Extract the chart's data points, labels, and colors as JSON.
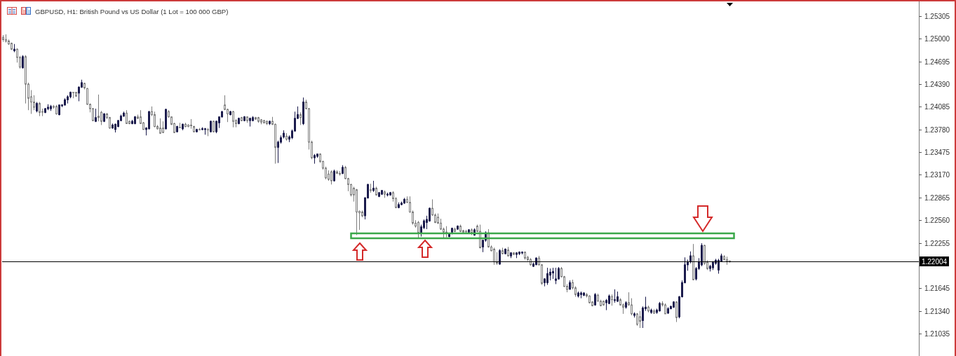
{
  "chart_data": {
    "type": "candlestick",
    "title": "GBPUSD, H1: British Pound vs US Dollar (1 Lot = 100 000 GBP)",
    "categories": [
      null,
      null,
      null,
      null,
      null,
      null,
      null,
      null,
      null,
      null,
      null,
      null,
      null,
      null,
      null,
      null,
      null,
      null,
      null,
      null,
      null,
      null,
      null,
      null,
      null,
      null,
      null,
      null,
      null,
      null,
      null,
      null,
      null,
      null,
      null,
      null,
      null,
      null,
      null,
      null,
      null,
      null,
      null,
      null,
      null,
      null,
      null,
      null,
      null,
      null,
      null,
      null,
      null,
      null,
      null,
      null,
      null,
      null,
      null,
      null,
      null,
      null,
      null,
      null,
      null,
      null,
      null,
      null,
      null,
      null,
      null,
      null,
      null,
      null,
      null,
      null,
      null,
      null,
      null,
      null,
      null,
      null,
      null,
      null,
      null,
      null,
      null,
      null,
      null,
      null,
      null,
      null,
      null,
      null,
      null,
      null,
      null,
      null,
      null,
      null,
      null,
      null,
      null,
      null,
      null,
      null,
      null,
      null,
      null,
      null,
      null,
      null,
      null,
      null,
      null,
      null,
      null,
      null,
      null,
      null,
      null,
      null,
      null,
      null,
      null,
      null,
      null,
      null,
      null,
      null,
      null,
      null,
      null,
      null,
      null,
      null,
      null,
      null,
      null,
      null,
      null,
      null,
      null,
      null,
      null,
      null,
      null,
      null,
      null,
      null,
      null,
      null,
      null,
      null,
      null,
      null,
      null,
      null,
      null,
      null,
      null,
      null,
      null,
      null,
      null,
      null,
      null,
      null,
      null,
      null,
      null,
      null,
      null,
      null,
      null,
      null,
      null,
      null,
      null,
      null,
      null,
      null,
      null,
      null,
      null,
      null,
      null,
      null,
      null,
      null,
      null,
      null,
      null,
      null,
      null,
      null,
      null,
      null,
      null,
      null,
      null,
      null,
      null,
      null,
      null,
      null,
      null,
      null,
      null,
      null,
      null,
      null,
      null,
      null,
      null,
      null,
      null,
      null,
      null,
      null,
      null,
      null,
      null,
      null,
      null,
      null,
      null,
      null,
      null,
      null,
      null,
      null,
      null,
      null,
      null,
      null,
      null,
      null,
      null,
      null,
      null,
      null,
      null,
      null,
      null,
      null,
      null,
      null,
      null,
      null,
      null,
      null,
      null,
      null,
      null,
      null,
      null,
      null,
      null,
      null,
      null,
      null,
      null,
      null,
      null,
      null,
      null,
      null,
      null,
      null,
      null,
      null,
      null,
      null,
      null,
      null,
      null,
      null,
      null,
      null,
      null,
      null,
      null,
      null,
      null,
      null,
      null,
      null,
      null,
      null,
      null,
      null,
      null,
      null,
      null,
      null,
      null,
      null,
      null,
      null,
      null,
      null,
      null,
      null,
      null,
      null,
      null,
      null,
      null,
      null,
      null,
      null,
      null,
      null,
      null,
      null,
      null,
      null,
      null,
      null,
      null,
      null,
      null,
      null,
      null,
      null,
      null
    ],
    "ohlc": [
      [
        1.2502,
        1.2505,
        1.2496,
        1.2499
      ],
      [
        1.2499,
        1.2506,
        1.2495,
        1.2497
      ],
      [
        1.2497,
        1.2499,
        1.2492,
        1.2493
      ],
      [
        1.2494,
        1.2495,
        1.2485,
        1.2486
      ],
      [
        1.2484,
        1.2493,
        1.2482,
        1.2486
      ],
      [
        1.2486,
        1.2487,
        1.2468,
        1.2475
      ],
      [
        1.2475,
        1.2477,
        1.246,
        1.2462
      ],
      [
        1.2461,
        1.2478,
        1.246,
        1.2476
      ],
      [
        1.2476,
        1.2478,
        1.2413,
        1.2439
      ],
      [
        1.2439,
        1.2441,
        1.2404,
        1.242
      ],
      [
        1.2422,
        1.2431,
        1.2399,
        1.2415
      ],
      [
        1.2415,
        1.2424,
        1.2404,
        1.2408
      ],
      [
        1.2403,
        1.2415,
        1.2401,
        1.2413
      ],
      [
        1.2413,
        1.2415,
        1.2396,
        1.2401
      ],
      [
        1.2402,
        1.2406,
        1.2396,
        1.2402
      ],
      [
        1.2401,
        1.2407,
        1.24,
        1.2406
      ],
      [
        1.2406,
        1.2412,
        1.2404,
        1.2408
      ],
      [
        1.2406,
        1.2411,
        1.2403,
        1.2409
      ],
      [
        1.2409,
        1.2411,
        1.2406,
        1.2408
      ],
      [
        1.2409,
        1.2411,
        1.2398,
        1.2399
      ],
      [
        1.2398,
        1.2411,
        1.2397,
        1.2411
      ],
      [
        1.241,
        1.2412,
        1.2408,
        1.2411
      ],
      [
        1.2411,
        1.242,
        1.241,
        1.2418
      ],
      [
        1.2418,
        1.2424,
        1.2413,
        1.2422
      ],
      [
        1.2422,
        1.2429,
        1.242,
        1.2428
      ],
      [
        1.2428,
        1.2428,
        1.242,
        1.2428
      ],
      [
        1.2428,
        1.2428,
        1.2422,
        1.2423
      ],
      [
        1.2427,
        1.2436,
        1.2416,
        1.2435
      ],
      [
        1.2435,
        1.2445,
        1.2434,
        1.2441
      ],
      [
        1.244,
        1.2441,
        1.2432,
        1.2434
      ],
      [
        1.2433,
        1.2434,
        1.2411,
        1.2412
      ],
      [
        1.2412,
        1.2413,
        1.2401,
        1.2406
      ],
      [
        1.2406,
        1.2407,
        1.2389,
        1.239
      ],
      [
        1.2389,
        1.2406,
        1.2388,
        1.2394
      ],
      [
        1.2396,
        1.2425,
        1.2389,
        1.2394
      ],
      [
        1.2401,
        1.2403,
        1.2384,
        1.2389
      ],
      [
        1.2389,
        1.24,
        1.2388,
        1.2399
      ],
      [
        1.2399,
        1.24,
        1.2392,
        1.2394
      ],
      [
        1.2394,
        1.2395,
        1.2379,
        1.238
      ],
      [
        1.238,
        1.2386,
        1.2379,
        1.2384
      ],
      [
        1.2378,
        1.2386,
        1.2374,
        1.2385
      ],
      [
        1.2382,
        1.2391,
        1.2381,
        1.239
      ],
      [
        1.239,
        1.2398,
        1.2389,
        1.2396
      ],
      [
        1.2396,
        1.2402,
        1.2395,
        1.24
      ],
      [
        1.24,
        1.2404,
        1.2386,
        1.2386
      ],
      [
        1.2389,
        1.239,
        1.2385,
        1.2386
      ],
      [
        1.2386,
        1.2391,
        1.2385,
        1.2389
      ],
      [
        1.2386,
        1.2396,
        1.2385,
        1.2395
      ],
      [
        1.2395,
        1.2398,
        1.2392,
        1.2393
      ],
      [
        1.2395,
        1.2404,
        1.2386,
        1.2386
      ],
      [
        1.2387,
        1.2388,
        1.2378,
        1.2378
      ],
      [
        1.2378,
        1.2381,
        1.237,
        1.238
      ],
      [
        1.2379,
        1.2403,
        1.2378,
        1.2402
      ],
      [
        1.2402,
        1.2409,
        1.2396,
        1.2398
      ],
      [
        1.2398,
        1.2402,
        1.2381,
        1.2382
      ],
      [
        1.2382,
        1.2384,
        1.2378,
        1.2379
      ],
      [
        1.238,
        1.2393,
        1.2372,
        1.2373
      ],
      [
        1.238,
        1.2389,
        1.2373,
        1.2374
      ],
      [
        1.2379,
        1.2406,
        1.2378,
        1.2405
      ],
      [
        1.2402,
        1.2404,
        1.2394,
        1.2395
      ],
      [
        1.2395,
        1.2395,
        1.2384,
        1.2385
      ],
      [
        1.2386,
        1.2387,
        1.2373,
        1.2374
      ],
      [
        1.2375,
        1.2383,
        1.2374,
        1.2382
      ],
      [
        1.2381,
        1.2387,
        1.238,
        1.2381
      ],
      [
        1.2379,
        1.2386,
        1.2377,
        1.2385
      ],
      [
        1.2385,
        1.2387,
        1.2381,
        1.2382
      ],
      [
        1.2384,
        1.2385,
        1.2381,
        1.2382
      ],
      [
        1.2384,
        1.2392,
        1.2379,
        1.2383
      ],
      [
        1.2382,
        1.2383,
        1.2374,
        1.2375
      ],
      [
        1.2375,
        1.2379,
        1.2374,
        1.2378
      ],
      [
        1.2378,
        1.238,
        1.2377,
        1.2378
      ],
      [
        1.2378,
        1.2381,
        1.2377,
        1.2379
      ],
      [
        1.2378,
        1.238,
        1.2371,
        1.2379
      ],
      [
        1.2378,
        1.238,
        1.2369,
        1.2378
      ],
      [
        1.2375,
        1.239,
        1.2374,
        1.2389
      ],
      [
        1.2389,
        1.239,
        1.2374,
        1.2375
      ],
      [
        1.2375,
        1.239,
        1.2373,
        1.2389
      ],
      [
        1.2387,
        1.2395,
        1.238,
        1.2395
      ],
      [
        1.2395,
        1.2403,
        1.2394,
        1.2402
      ],
      [
        1.2411,
        1.2424,
        1.2404,
        1.2405
      ],
      [
        1.2405,
        1.2406,
        1.2388,
        1.2399
      ],
      [
        1.2398,
        1.2403,
        1.2397,
        1.2402
      ],
      [
        1.2402,
        1.2403,
        1.2381,
        1.2389
      ],
      [
        1.239,
        1.2392,
        1.2381,
        1.2386
      ],
      [
        1.2386,
        1.2394,
        1.2385,
        1.2393
      ],
      [
        1.2394,
        1.2395,
        1.2389,
        1.239
      ],
      [
        1.239,
        1.2396,
        1.2389,
        1.2395
      ],
      [
        1.2395,
        1.2395,
        1.2387,
        1.239
      ],
      [
        1.239,
        1.2394,
        1.2382,
        1.2393
      ],
      [
        1.239,
        1.2396,
        1.2389,
        1.2394
      ],
      [
        1.2394,
        1.2395,
        1.2391,
        1.2392
      ],
      [
        1.2394,
        1.2395,
        1.2387,
        1.2389
      ],
      [
        1.2391,
        1.2392,
        1.2385,
        1.2388
      ],
      [
        1.239,
        1.2391,
        1.2386,
        1.2387
      ],
      [
        1.2389,
        1.239,
        1.2384,
        1.2386
      ],
      [
        1.2386,
        1.239,
        1.2384,
        1.2389
      ],
      [
        1.2389,
        1.2395,
        1.2384,
        1.2385
      ],
      [
        1.2385,
        1.2386,
        1.2332,
        1.2354
      ],
      [
        1.2354,
        1.2363,
        1.2333,
        1.2361
      ],
      [
        1.2361,
        1.237,
        1.2359,
        1.2367
      ],
      [
        1.2368,
        1.2377,
        1.2366,
        1.2373
      ],
      [
        1.2369,
        1.2373,
        1.2363,
        1.2365
      ],
      [
        1.2365,
        1.237,
        1.2361,
        1.2368
      ],
      [
        1.2367,
        1.2378,
        1.2365,
        1.2376
      ],
      [
        1.2376,
        1.2402,
        1.2375,
        1.2393
      ],
      [
        1.2393,
        1.2409,
        1.2392,
        1.2398
      ],
      [
        1.2398,
        1.2401,
        1.2384,
        1.2394
      ],
      [
        1.2386,
        1.2421,
        1.2384,
        1.2415
      ],
      [
        1.2415,
        1.2418,
        1.2405,
        1.2406
      ],
      [
        1.2406,
        1.2407,
        1.2351,
        1.2361
      ],
      [
        1.2361,
        1.2363,
        1.2338,
        1.234
      ],
      [
        1.234,
        1.2345,
        1.2332,
        1.2343
      ],
      [
        1.2342,
        1.2345,
        1.234,
        1.2345
      ],
      [
        1.2345,
        1.2346,
        1.2333,
        1.2335
      ],
      [
        1.2335,
        1.2336,
        1.2324,
        1.2326
      ],
      [
        1.2326,
        1.2328,
        1.2311,
        1.2313
      ],
      [
        1.2318,
        1.2323,
        1.2309,
        1.2311
      ],
      [
        1.2321,
        1.2323,
        1.2304,
        1.2309
      ],
      [
        1.2309,
        1.2324,
        1.2308,
        1.2322
      ],
      [
        1.2321,
        1.2323,
        1.2318,
        1.2319
      ],
      [
        1.2319,
        1.2322,
        1.2316,
        1.2318
      ],
      [
        1.2319,
        1.233,
        1.2318,
        1.2327
      ],
      [
        1.2327,
        1.2329,
        1.2311,
        1.2312
      ],
      [
        1.2312,
        1.2313,
        1.2295,
        1.2304
      ],
      [
        1.2304,
        1.2305,
        1.2288,
        1.229
      ],
      [
        1.2299,
        1.2301,
        1.2281,
        1.229
      ],
      [
        1.2297,
        1.2298,
        1.2236,
        1.2267
      ],
      [
        1.2268,
        1.2269,
        1.2243,
        1.2266
      ],
      [
        1.2267,
        1.2269,
        1.226,
        1.2262
      ],
      [
        1.2262,
        1.2287,
        1.2257,
        1.2286
      ],
      [
        1.2286,
        1.2305,
        1.2285,
        1.2304
      ],
      [
        1.2297,
        1.2305,
        1.2293,
        1.2296
      ],
      [
        1.2296,
        1.2309,
        1.2294,
        1.2299
      ],
      [
        1.2299,
        1.2301,
        1.2289,
        1.229
      ],
      [
        1.2288,
        1.2294,
        1.2287,
        1.2293
      ],
      [
        1.2291,
        1.2296,
        1.229,
        1.2296
      ],
      [
        1.2294,
        1.2296,
        1.2286,
        1.2291
      ],
      [
        1.229,
        1.2293,
        1.2288,
        1.2291
      ],
      [
        1.229,
        1.2294,
        1.2289,
        1.2293
      ],
      [
        1.2293,
        1.2295,
        1.2281,
        1.2285
      ],
      [
        1.2285,
        1.2287,
        1.2272,
        1.2273
      ],
      [
        1.2273,
        1.228,
        1.2272,
        1.2277
      ],
      [
        1.2277,
        1.2281,
        1.2276,
        1.2279
      ],
      [
        1.2279,
        1.2286,
        1.2278,
        1.2284
      ],
      [
        1.2284,
        1.2288,
        1.2279,
        1.228
      ],
      [
        1.228,
        1.2288,
        1.2266,
        1.2267
      ],
      [
        1.2267,
        1.2269,
        1.225,
        1.2252
      ],
      [
        1.2252,
        1.2256,
        1.2246,
        1.2248
      ],
      [
        1.2253,
        1.2255,
        1.2232,
        1.2239
      ],
      [
        1.2239,
        1.225,
        1.2234,
        1.2247
      ],
      [
        1.2246,
        1.2257,
        1.2244,
        1.2255
      ],
      [
        1.2253,
        1.2262,
        1.2244,
        1.2257
      ],
      [
        1.2255,
        1.2273,
        1.2254,
        1.2272
      ],
      [
        1.2272,
        1.2284,
        1.2262,
        1.2263
      ],
      [
        1.2263,
        1.2265,
        1.2252,
        1.2253
      ],
      [
        1.226,
        1.2265,
        1.2251,
        1.2252
      ],
      [
        1.2252,
        1.2258,
        1.2243,
        1.2244
      ],
      [
        1.2244,
        1.2246,
        1.2232,
        1.224
      ],
      [
        1.224,
        1.2248,
        1.2233,
        1.2239
      ],
      [
        1.2234,
        1.2238,
        1.2233,
        1.2237
      ],
      [
        1.224,
        1.2246,
        1.2237,
        1.2245
      ],
      [
        1.2244,
        1.2246,
        1.224,
        1.2241
      ],
      [
        1.2244,
        1.2249,
        1.2243,
        1.2248
      ],
      [
        1.2248,
        1.225,
        1.224,
        1.2241
      ],
      [
        1.2242,
        1.2243,
        1.2239,
        1.224
      ],
      [
        1.2241,
        1.2243,
        1.2239,
        1.2241
      ],
      [
        1.224,
        1.2244,
        1.2239,
        1.2243
      ],
      [
        1.2243,
        1.2245,
        1.2236,
        1.2239
      ],
      [
        1.2236,
        1.2245,
        1.2235,
        1.2243
      ],
      [
        1.2248,
        1.225,
        1.224,
        1.2241
      ],
      [
        1.2241,
        1.225,
        1.2218,
        1.2219
      ],
      [
        1.222,
        1.223,
        1.2213,
        1.2229
      ],
      [
        1.2229,
        1.2241,
        1.2227,
        1.2239
      ],
      [
        1.2239,
        1.2244,
        1.2219,
        1.222
      ],
      [
        1.222,
        1.2222,
        1.2214,
        1.2215
      ],
      [
        1.2217,
        1.2219,
        1.2196,
        1.22
      ],
      [
        1.22,
        1.2213,
        1.2196,
        1.2198
      ],
      [
        1.2197,
        1.2217,
        1.2196,
        1.2215
      ],
      [
        1.2215,
        1.2219,
        1.221,
        1.2211
      ],
      [
        1.2211,
        1.2218,
        1.221,
        1.2217
      ],
      [
        1.2216,
        1.222,
        1.2207,
        1.2208
      ],
      [
        1.2208,
        1.2213,
        1.2205,
        1.2212
      ],
      [
        1.2212,
        1.2213,
        1.2209,
        1.221
      ],
      [
        1.221,
        1.2213,
        1.2205,
        1.2212
      ],
      [
        1.2211,
        1.2214,
        1.2209,
        1.2213
      ],
      [
        1.2212,
        1.2214,
        1.221,
        1.2213
      ],
      [
        1.2213,
        1.2214,
        1.2203,
        1.2205
      ],
      [
        1.2206,
        1.2208,
        1.2201,
        1.2203
      ],
      [
        1.2203,
        1.2205,
        1.2195,
        1.2196
      ],
      [
        1.2194,
        1.2199,
        1.2193,
        1.2197
      ],
      [
        1.2196,
        1.2206,
        1.2196,
        1.2205
      ],
      [
        1.2205,
        1.2208,
        1.2195,
        1.2196
      ],
      [
        1.2196,
        1.2197,
        1.2169,
        1.2171
      ],
      [
        1.2172,
        1.2178,
        1.2167,
        1.2177
      ],
      [
        1.2172,
        1.2192,
        1.2169,
        1.2184
      ],
      [
        1.2182,
        1.2191,
        1.2175,
        1.2186
      ],
      [
        1.2185,
        1.2192,
        1.2177,
        1.2187
      ],
      [
        1.2175,
        1.2192,
        1.217,
        1.2177
      ],
      [
        1.2177,
        1.2193,
        1.2176,
        1.2191
      ],
      [
        1.2191,
        1.2193,
        1.2179,
        1.218
      ],
      [
        1.218,
        1.2181,
        1.2166,
        1.2167
      ],
      [
        1.2167,
        1.217,
        1.2159,
        1.2163
      ],
      [
        1.2163,
        1.2175,
        1.2163,
        1.2172
      ],
      [
        1.2172,
        1.2176,
        1.2163,
        1.2165
      ],
      [
        1.2165,
        1.2167,
        1.2153,
        1.2156
      ],
      [
        1.2154,
        1.216,
        1.2152,
        1.2158
      ],
      [
        1.2156,
        1.216,
        1.2151,
        1.2158
      ],
      [
        1.2155,
        1.2159,
        1.2154,
        1.2158
      ],
      [
        1.2156,
        1.2158,
        1.2152,
        1.2154
      ],
      [
        1.2154,
        1.2155,
        1.2144,
        1.2145
      ],
      [
        1.2146,
        1.2147,
        1.214,
        1.2141
      ],
      [
        1.2142,
        1.2158,
        1.2141,
        1.2156
      ],
      [
        1.2155,
        1.2157,
        1.2147,
        1.2147
      ],
      [
        1.2147,
        1.2149,
        1.214,
        1.2141
      ],
      [
        1.2147,
        1.2148,
        1.2141,
        1.2142
      ],
      [
        1.2145,
        1.215,
        1.2135,
        1.2148
      ],
      [
        1.2144,
        1.2156,
        1.2143,
        1.2154
      ],
      [
        1.2153,
        1.2156,
        1.2141,
        1.2149
      ],
      [
        1.2148,
        1.2163,
        1.2145,
        1.2149
      ],
      [
        1.2147,
        1.216,
        1.2146,
        1.2153
      ],
      [
        1.2149,
        1.2151,
        1.2141,
        1.2142
      ],
      [
        1.2142,
        1.2144,
        1.213,
        1.2139
      ],
      [
        1.2139,
        1.2147,
        1.2137,
        1.2145
      ],
      [
        1.2145,
        1.2159,
        1.2141,
        1.2142
      ],
      [
        1.2142,
        1.2151,
        1.2128,
        1.213
      ],
      [
        1.2128,
        1.2132,
        1.2125,
        1.213
      ],
      [
        1.213,
        1.2131,
        1.2114,
        1.2116
      ],
      [
        1.2126,
        1.2134,
        1.2111,
        1.212
      ],
      [
        1.2121,
        1.214,
        1.2111,
        1.2138
      ],
      [
        1.2137,
        1.2153,
        1.2134,
        1.2139
      ],
      [
        1.2139,
        1.2141,
        1.2132,
        1.2134
      ],
      [
        1.2132,
        1.2137,
        1.213,
        1.2135
      ],
      [
        1.2134,
        1.2136,
        1.213,
        1.2131
      ],
      [
        1.2132,
        1.2137,
        1.213,
        1.2135
      ],
      [
        1.2134,
        1.2146,
        1.2133,
        1.2144
      ],
      [
        1.2144,
        1.2147,
        1.214,
        1.2142
      ],
      [
        1.2142,
        1.2144,
        1.213,
        1.213
      ],
      [
        1.2131,
        1.2139,
        1.213,
        1.2137
      ],
      [
        1.2137,
        1.2141,
        1.2136,
        1.214
      ],
      [
        1.2139,
        1.2147,
        1.2138,
        1.2146
      ],
      [
        1.2146,
        1.2147,
        1.2119,
        1.2125
      ],
      [
        1.2126,
        1.2154,
        1.2124,
        1.2153
      ],
      [
        1.2153,
        1.2175,
        1.2152,
        1.2172
      ],
      [
        1.2172,
        1.2206,
        1.2171,
        1.2196
      ],
      [
        1.2196,
        1.2203,
        1.2188,
        1.22
      ],
      [
        1.22,
        1.2214,
        1.2198,
        1.2208
      ],
      [
        1.2208,
        1.2224,
        1.2175,
        1.2176
      ],
      [
        1.2177,
        1.2193,
        1.2175,
        1.2191
      ],
      [
        1.2191,
        1.2205,
        1.2189,
        1.22
      ],
      [
        1.2196,
        1.2225,
        1.2194,
        1.2222
      ],
      [
        1.2222,
        1.2223,
        1.2196,
        1.2198
      ],
      [
        1.22,
        1.2202,
        1.2189,
        1.2191
      ],
      [
        1.2191,
        1.2196,
        1.2187,
        1.2194
      ],
      [
        1.2192,
        1.2201,
        1.2189,
        1.2199
      ],
      [
        1.2198,
        1.2204,
        1.2196,
        1.2202
      ],
      [
        1.2189,
        1.2204,
        1.2184,
        1.2202
      ],
      [
        1.2201,
        1.2211,
        1.22,
        1.2208
      ],
      [
        1.2207,
        1.2209,
        1.2202,
        1.2203
      ],
      [
        1.2203,
        1.2207,
        1.2196,
        1.2201
      ],
      [
        1.2201,
        1.2202,
        1.2199,
        1.22
      ],
      null,
      null,
      null,
      null,
      null,
      null,
      null,
      null,
      null,
      null,
      null,
      null,
      null,
      null,
      null,
      null,
      null,
      null,
      null,
      null,
      null,
      null,
      null,
      null,
      null,
      null,
      null,
      null,
      null,
      null,
      null,
      null,
      null,
      null,
      null,
      null,
      null,
      null,
      null,
      null,
      null,
      null,
      null,
      null,
      null,
      null,
      null,
      null,
      null,
      null,
      null,
      null,
      null,
      null,
      null,
      null,
      null,
      null,
      null,
      null,
      null,
      null,
      null,
      null,
      null,
      null,
      null
    ],
    "ylim": [
      1.20733,
      1.25522
    ],
    "yticks": [
      1.25305,
      {
        "value": 1.25,
        "label": "1.25000"
      },
      1.24695,
      {
        "value": 1.2439,
        "label": "1.24390"
      },
      1.24085,
      {
        "value": 1.2378,
        "label": "1.23780"
      },
      1.23475,
      {
        "value": 1.2317,
        "label": "1.23170"
      },
      1.22865,
      {
        "value": 1.2256,
        "label": "1.22560"
      },
      1.22255,
      {
        "value": 1.2195,
        "label": null
      },
      1.21645,
      {
        "value": 1.2134,
        "label": "1.21340"
      },
      1.21035
    ],
    "tick_labels": "y",
    "ref_lines": [
      {
        "axis": "y",
        "value": 1.22004,
        "label": "1.22004",
        "color": "#000000"
      }
    ]
  }
}
